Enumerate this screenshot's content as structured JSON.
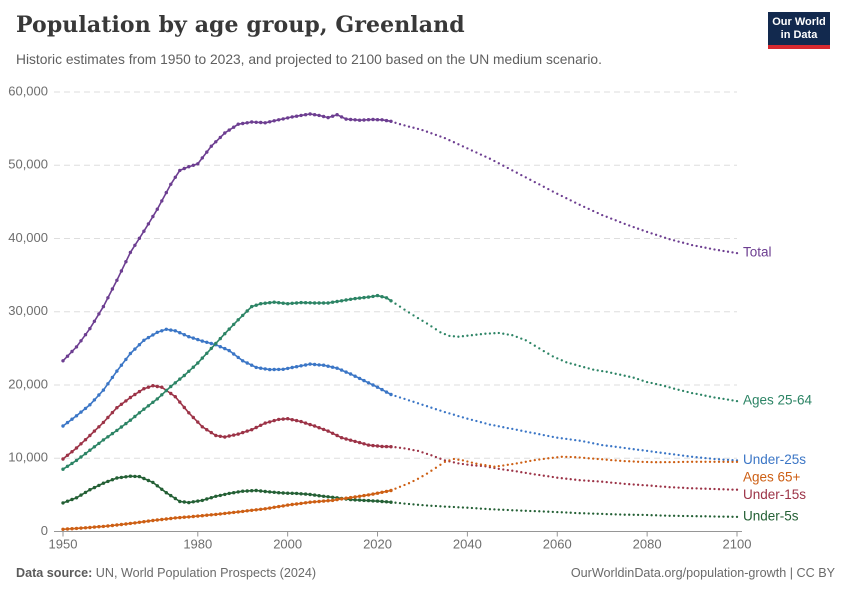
{
  "header": {
    "title": "Population by age group, Greenland",
    "subtitle": "Historic estimates from 1950 to 2023, and projected to 2100 based on the UN medium scenario.",
    "logo": {
      "line1": "Our World",
      "line2": "in Data",
      "bg_color": "#12294e",
      "accent_color": "#d7292f"
    }
  },
  "footer": {
    "source_label": "Data source:",
    "source_text": " UN, World Population Prospects (2024)",
    "link_text": "OurWorldinData.org/population-growth | CC BY"
  },
  "chart_data": {
    "type": "line",
    "title": "Population by age group, Greenland",
    "subtitle": "Historic estimates from 1950 to 2023, and projected to 2100 based on the UN medium scenario.",
    "projection_start": 2023,
    "x_axis": {
      "range": [
        1948,
        2100
      ],
      "ticks": [
        1950,
        1980,
        2000,
        2020,
        2040,
        2060,
        2080,
        2100
      ]
    },
    "y_axis": {
      "range": [
        0,
        60000
      ],
      "ticks": [
        0,
        10000,
        20000,
        30000,
        40000,
        50000,
        60000
      ],
      "tick_labels": [
        "0",
        "10,000",
        "20,000",
        "30,000",
        "40,000",
        "50,000",
        "60,000"
      ],
      "gridlines": true
    },
    "colors": {
      "grid": "#dedede",
      "axis": "#969696",
      "tick_text": "#6e6e6e"
    },
    "legend_position": "right-of-line-ends",
    "series": [
      {
        "name": "Total",
        "color": "#6d3e91",
        "historic": [
          [
            1950,
            23300
          ],
          [
            1953,
            25200
          ],
          [
            1956,
            27700
          ],
          [
            1959,
            30700
          ],
          [
            1962,
            34300
          ],
          [
            1965,
            38100
          ],
          [
            1968,
            41000
          ],
          [
            1971,
            44000
          ],
          [
            1974,
            47400
          ],
          [
            1976,
            49300
          ],
          [
            1978,
            49800
          ],
          [
            1980,
            50200
          ],
          [
            1983,
            52600
          ],
          [
            1986,
            54400
          ],
          [
            1989,
            55600
          ],
          [
            1992,
            55900
          ],
          [
            1995,
            55800
          ],
          [
            1998,
            56200
          ],
          [
            2001,
            56600
          ],
          [
            2004,
            56900
          ],
          [
            2005,
            57000
          ],
          [
            2007,
            56800
          ],
          [
            2009,
            56500
          ],
          [
            2011,
            56900
          ],
          [
            2013,
            56300
          ],
          [
            2016,
            56150
          ],
          [
            2019,
            56250
          ],
          [
            2021,
            56200
          ],
          [
            2023,
            56000
          ]
        ],
        "projection": [
          [
            2025,
            55600
          ],
          [
            2030,
            54800
          ],
          [
            2035,
            53700
          ],
          [
            2040,
            52300
          ],
          [
            2045,
            50900
          ],
          [
            2050,
            49300
          ],
          [
            2055,
            47700
          ],
          [
            2060,
            46100
          ],
          [
            2065,
            44600
          ],
          [
            2070,
            43200
          ],
          [
            2075,
            42000
          ],
          [
            2080,
            40900
          ],
          [
            2085,
            39900
          ],
          [
            2090,
            39100
          ],
          [
            2095,
            38500
          ],
          [
            2100,
            38000
          ]
        ]
      },
      {
        "name": "Under-25s",
        "color": "#3b76c6",
        "historic": [
          [
            1950,
            14400
          ],
          [
            1953,
            15800
          ],
          [
            1956,
            17300
          ],
          [
            1959,
            19300
          ],
          [
            1962,
            21900
          ],
          [
            1965,
            24300
          ],
          [
            1968,
            26100
          ],
          [
            1971,
            27200
          ],
          [
            1973,
            27600
          ],
          [
            1975,
            27400
          ],
          [
            1978,
            26600
          ],
          [
            1981,
            26000
          ],
          [
            1984,
            25500
          ],
          [
            1987,
            24700
          ],
          [
            1990,
            23300
          ],
          [
            1993,
            22400
          ],
          [
            1996,
            22100
          ],
          [
            1999,
            22150
          ],
          [
            2002,
            22500
          ],
          [
            2005,
            22850
          ],
          [
            2008,
            22700
          ],
          [
            2011,
            22300
          ],
          [
            2014,
            21500
          ],
          [
            2017,
            20600
          ],
          [
            2020,
            19700
          ],
          [
            2023,
            18700
          ]
        ],
        "projection": [
          [
            2026,
            18100
          ],
          [
            2030,
            17300
          ],
          [
            2035,
            16300
          ],
          [
            2040,
            15400
          ],
          [
            2045,
            14600
          ],
          [
            2050,
            14000
          ],
          [
            2055,
            13400
          ],
          [
            2060,
            12800
          ],
          [
            2065,
            12400
          ],
          [
            2070,
            11800
          ],
          [
            2075,
            11400
          ],
          [
            2080,
            11000
          ],
          [
            2085,
            10600
          ],
          [
            2090,
            10200
          ],
          [
            2095,
            9900
          ],
          [
            2100,
            9700
          ]
        ]
      },
      {
        "name": "Under-15s",
        "color": "#9c3347",
        "historic": [
          [
            1950,
            9900
          ],
          [
            1953,
            11400
          ],
          [
            1956,
            13100
          ],
          [
            1959,
            14900
          ],
          [
            1962,
            16900
          ],
          [
            1965,
            18300
          ],
          [
            1968,
            19500
          ],
          [
            1970,
            19900
          ],
          [
            1972,
            19700
          ],
          [
            1975,
            18400
          ],
          [
            1978,
            16200
          ],
          [
            1981,
            14300
          ],
          [
            1984,
            13100
          ],
          [
            1986,
            12900
          ],
          [
            1989,
            13300
          ],
          [
            1992,
            13900
          ],
          [
            1995,
            14800
          ],
          [
            1998,
            15300
          ],
          [
            2000,
            15400
          ],
          [
            2003,
            15000
          ],
          [
            2006,
            14400
          ],
          [
            2009,
            13700
          ],
          [
            2012,
            12800
          ],
          [
            2015,
            12300
          ],
          [
            2018,
            11800
          ],
          [
            2021,
            11600
          ],
          [
            2023,
            11580
          ]
        ],
        "projection": [
          [
            2026,
            11350
          ],
          [
            2029,
            11000
          ],
          [
            2032,
            10400
          ],
          [
            2035,
            9700
          ],
          [
            2038,
            9300
          ],
          [
            2041,
            9050
          ],
          [
            2044,
            8900
          ],
          [
            2047,
            8550
          ],
          [
            2050,
            8300
          ],
          [
            2055,
            7800
          ],
          [
            2060,
            7350
          ],
          [
            2065,
            7000
          ],
          [
            2070,
            6800
          ],
          [
            2075,
            6500
          ],
          [
            2080,
            6300
          ],
          [
            2085,
            6050
          ],
          [
            2090,
            5900
          ],
          [
            2095,
            5800
          ],
          [
            2100,
            5700
          ]
        ]
      },
      {
        "name": "Ages 25-64",
        "color": "#2c8465",
        "historic": [
          [
            1950,
            8500
          ],
          [
            1953,
            9700
          ],
          [
            1956,
            11100
          ],
          [
            1959,
            12500
          ],
          [
            1962,
            13800
          ],
          [
            1965,
            15200
          ],
          [
            1968,
            16700
          ],
          [
            1971,
            18100
          ],
          [
            1974,
            19800
          ],
          [
            1977,
            21300
          ],
          [
            1980,
            23000
          ],
          [
            1983,
            25000
          ],
          [
            1986,
            27000
          ],
          [
            1989,
            28900
          ],
          [
            1992,
            30700
          ],
          [
            1994,
            31100
          ],
          [
            1997,
            31300
          ],
          [
            2000,
            31100
          ],
          [
            2003,
            31250
          ],
          [
            2006,
            31200
          ],
          [
            2009,
            31200
          ],
          [
            2012,
            31500
          ],
          [
            2015,
            31800
          ],
          [
            2018,
            32000
          ],
          [
            2020,
            32200
          ],
          [
            2022,
            31900
          ],
          [
            2023,
            31500
          ]
        ],
        "projection": [
          [
            2025,
            30700
          ],
          [
            2028,
            29500
          ],
          [
            2031,
            28400
          ],
          [
            2034,
            27200
          ],
          [
            2036,
            26700
          ],
          [
            2038,
            26600
          ],
          [
            2041,
            26800
          ],
          [
            2044,
            27000
          ],
          [
            2047,
            27100
          ],
          [
            2050,
            26800
          ],
          [
            2053,
            26100
          ],
          [
            2056,
            25000
          ],
          [
            2059,
            23900
          ],
          [
            2062,
            23100
          ],
          [
            2065,
            22600
          ],
          [
            2068,
            22100
          ],
          [
            2071,
            21800
          ],
          [
            2074,
            21400
          ],
          [
            2077,
            21000
          ],
          [
            2080,
            20400
          ],
          [
            2083,
            20000
          ],
          [
            2086,
            19500
          ],
          [
            2090,
            18900
          ],
          [
            2095,
            18300
          ],
          [
            2100,
            17800
          ]
        ]
      },
      {
        "name": "Under-5s",
        "color": "#246035",
        "historic": [
          [
            1950,
            3900
          ],
          [
            1953,
            4600
          ],
          [
            1956,
            5700
          ],
          [
            1959,
            6600
          ],
          [
            1962,
            7300
          ],
          [
            1965,
            7550
          ],
          [
            1967,
            7500
          ],
          [
            1970,
            6700
          ],
          [
            1973,
            5300
          ],
          [
            1976,
            4100
          ],
          [
            1978,
            3950
          ],
          [
            1981,
            4250
          ],
          [
            1984,
            4800
          ],
          [
            1987,
            5200
          ],
          [
            1990,
            5500
          ],
          [
            1993,
            5600
          ],
          [
            1996,
            5400
          ],
          [
            1999,
            5250
          ],
          [
            2002,
            5200
          ],
          [
            2005,
            5050
          ],
          [
            2008,
            4800
          ],
          [
            2011,
            4600
          ],
          [
            2014,
            4350
          ],
          [
            2017,
            4250
          ],
          [
            2020,
            4150
          ],
          [
            2023,
            4000
          ]
        ],
        "projection": [
          [
            2027,
            3750
          ],
          [
            2031,
            3550
          ],
          [
            2035,
            3400
          ],
          [
            2040,
            3250
          ],
          [
            2045,
            3050
          ],
          [
            2050,
            2900
          ],
          [
            2055,
            2780
          ],
          [
            2060,
            2650
          ],
          [
            2065,
            2500
          ],
          [
            2070,
            2400
          ],
          [
            2075,
            2300
          ],
          [
            2080,
            2250
          ],
          [
            2085,
            2150
          ],
          [
            2090,
            2100
          ],
          [
            2095,
            2050
          ],
          [
            2100,
            2000
          ]
        ]
      },
      {
        "name": "Ages 65+",
        "color": "#cd5f14",
        "historic": [
          [
            1950,
            300
          ],
          [
            1955,
            500
          ],
          [
            1960,
            750
          ],
          [
            1965,
            1100
          ],
          [
            1970,
            1500
          ],
          [
            1975,
            1850
          ],
          [
            1980,
            2100
          ],
          [
            1985,
            2400
          ],
          [
            1990,
            2750
          ],
          [
            1995,
            3100
          ],
          [
            2000,
            3600
          ],
          [
            2005,
            4000
          ],
          [
            2010,
            4250
          ],
          [
            2013,
            4550
          ],
          [
            2016,
            4800
          ],
          [
            2019,
            5100
          ],
          [
            2021,
            5350
          ],
          [
            2023,
            5600
          ]
        ],
        "projection": [
          [
            2025,
            6100
          ],
          [
            2027,
            6600
          ],
          [
            2029,
            7200
          ],
          [
            2031,
            7900
          ],
          [
            2033,
            8700
          ],
          [
            2035,
            9500
          ],
          [
            2037,
            9900
          ],
          [
            2039,
            9700
          ],
          [
            2041,
            9400
          ],
          [
            2043,
            9150
          ],
          [
            2046,
            8850
          ],
          [
            2049,
            9100
          ],
          [
            2052,
            9400
          ],
          [
            2055,
            9750
          ],
          [
            2058,
            10000
          ],
          [
            2061,
            10200
          ],
          [
            2064,
            10150
          ],
          [
            2067,
            10000
          ],
          [
            2070,
            9850
          ],
          [
            2074,
            9650
          ],
          [
            2078,
            9520
          ],
          [
            2082,
            9460
          ],
          [
            2086,
            9480
          ],
          [
            2090,
            9510
          ],
          [
            2095,
            9520
          ],
          [
            2100,
            9500
          ]
        ]
      }
    ]
  }
}
